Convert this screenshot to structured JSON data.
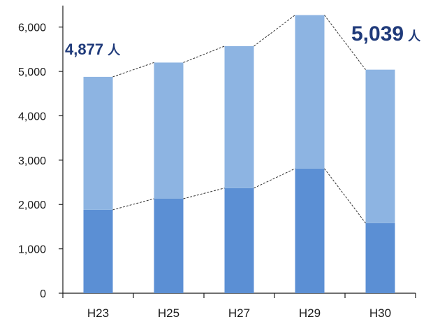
{
  "chart_data": {
    "type": "bar",
    "stacked": true,
    "categories": [
      "H23",
      "H25",
      "H27",
      "H29",
      "H30"
    ],
    "series": [
      {
        "values": [
          1880,
          2130,
          2370,
          2810,
          1580
        ],
        "color": "#5b8fd4"
      },
      {
        "values": [
          2997,
          3070,
          3200,
          3460,
          3459
        ],
        "color": "#8db4e2"
      }
    ],
    "totals": [
      4877,
      5200,
      5570,
      6270,
      5039
    ],
    "ylim": [
      0,
      6500
    ],
    "yticks": [
      0,
      1000,
      2000,
      3000,
      4000,
      5000,
      6000
    ],
    "ytick_labels": [
      "0",
      "1,000",
      "2,000",
      "3,000",
      "4,000",
      "5,000",
      "6,000"
    ],
    "annotations": [
      {
        "category": "H23",
        "value": "4,877",
        "unit": "人"
      },
      {
        "category": "H30",
        "value": "5,039",
        "unit": "人"
      }
    ],
    "annotation_color": "#1f3a7a",
    "connector_lines": "dashed",
    "grid": false
  }
}
